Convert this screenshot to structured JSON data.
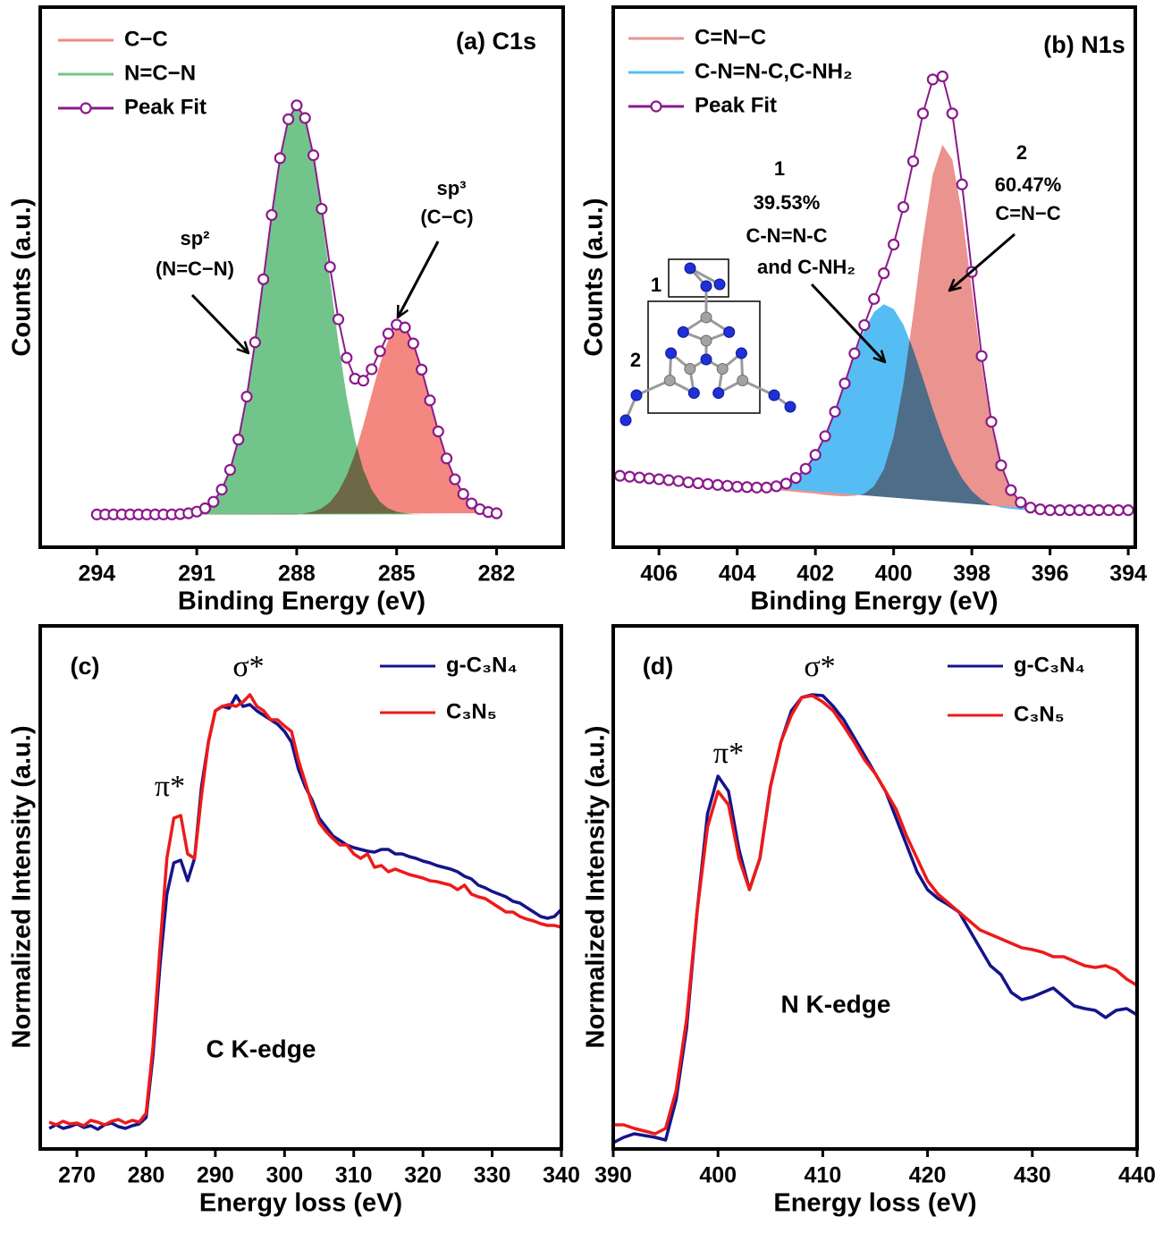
{
  "chart_data": [
    {
      "type": "line",
      "title": "(a) C1s",
      "x_label": "Binding Energy (eV)",
      "y_label": "Counts (a.u.)",
      "xlim": [
        295.7,
        280
      ],
      "xticks": [
        294,
        291,
        288,
        285,
        282
      ],
      "ylim": [
        -0.08,
        1.24
      ],
      "x": [
        294,
        293.75,
        293.5,
        293.25,
        293,
        292.75,
        292.5,
        292.25,
        292,
        291.75,
        291.5,
        291.25,
        291,
        290.75,
        290.5,
        290.25,
        290,
        289.75,
        289.5,
        289.25,
        289,
        288.75,
        288.5,
        288.25,
        288,
        287.75,
        287.5,
        287.25,
        287,
        286.75,
        286.5,
        286.25,
        286,
        285.75,
        285.5,
        285.25,
        285,
        284.75,
        284.5,
        284.25,
        284,
        283.75,
        283.5,
        283.25,
        283,
        282.75,
        282.5,
        282.25,
        282
      ],
      "series": [
        {
          "name": "C−C",
          "color": "#f4877f",
          "fill": true,
          "values": [
            0,
            0,
            0,
            0,
            0,
            0,
            0,
            0,
            0,
            0,
            0,
            0,
            0,
            0,
            0,
            0,
            0,
            0,
            0,
            0,
            0,
            0,
            0,
            0,
            0,
            0.003,
            0.007,
            0.015,
            0.03,
            0.056,
            0.095,
            0.149,
            0.218,
            0.294,
            0.368,
            0.427,
            0.457,
            0.454,
            0.417,
            0.354,
            0.279,
            0.203,
            0.137,
            0.086,
            0.05,
            0.027,
            0.013,
            0.006,
            0.003
          ]
        },
        {
          "name": "N=C−N",
          "color": "#72c58a",
          "fill": true,
          "values": [
            0,
            0,
            0,
            0,
            0,
            0,
            0,
            0,
            0,
            0,
            0.001,
            0.003,
            0.007,
            0.015,
            0.031,
            0.061,
            0.109,
            0.183,
            0.288,
            0.421,
            0.575,
            0.732,
            0.871,
            0.966,
            1,
            0.966,
            0.871,
            0.732,
            0.575,
            0.421,
            0.288,
            0.183,
            0.109,
            0.061,
            0.031,
            0.015,
            0.007,
            0.003,
            0.001,
            0,
            0,
            0,
            0,
            0,
            0,
            0,
            0,
            0,
            0
          ]
        },
        {
          "name": "Peak Fit",
          "color": "#8b1a8b",
          "marker": "circle",
          "values": [
            0,
            0,
            0,
            0,
            0,
            0,
            0,
            0,
            0,
            0,
            0.001,
            0.003,
            0.007,
            0.015,
            0.031,
            0.061,
            0.109,
            0.183,
            0.288,
            0.421,
            0.575,
            0.732,
            0.871,
            0.966,
            1,
            0.969,
            0.878,
            0.747,
            0.605,
            0.477,
            0.383,
            0.332,
            0.327,
            0.355,
            0.399,
            0.442,
            0.464,
            0.457,
            0.418,
            0.354,
            0.279,
            0.203,
            0.137,
            0.086,
            0.05,
            0.027,
            0.013,
            0.006,
            0.003
          ]
        }
      ],
      "annotations": [
        "sp²",
        "(N=C−N)",
        "sp³",
        "(C−C)"
      ]
    },
    {
      "type": "line",
      "title": "(b) N1s",
      "x_label": "Binding Energy (eV)",
      "y_label": "Counts (a.u.)",
      "xlim": [
        407.17,
        393.82
      ],
      "xticks": [
        406,
        404,
        402,
        400,
        398,
        396,
        394
      ],
      "ylim": [
        -0.08,
        1.16
      ],
      "x": [
        407,
        406.75,
        406.5,
        406.25,
        406,
        405.75,
        405.5,
        405.25,
        405,
        404.75,
        404.5,
        404.25,
        404,
        403.75,
        403.5,
        403.25,
        403,
        402.75,
        402.5,
        402.25,
        402,
        401.75,
        401.5,
        401.25,
        401,
        400.75,
        400.5,
        400.25,
        400,
        399.75,
        399.5,
        399.25,
        399,
        398.75,
        398.5,
        398.25,
        398,
        397.75,
        397.5,
        397.25,
        397,
        396.75,
        396.5,
        396.25,
        396,
        395.75,
        395.5,
        395.25,
        395,
        394.75,
        394.5,
        394.25,
        394
      ],
      "series": [
        {
          "name": "C=N−C",
          "color": "#ea938f",
          "fill": true,
          "values": [
            0.084,
            0.082,
            0.08,
            0.078,
            0.076,
            0.074,
            0.072,
            0.069,
            0.067,
            0.065,
            0.063,
            0.061,
            0.059,
            0.057,
            0.055,
            0.053,
            0.051,
            0.049,
            0.047,
            0.045,
            0.043,
            0.04,
            0.038,
            0.037,
            0.038,
            0.043,
            0.06,
            0.099,
            0.174,
            0.294,
            0.454,
            0.629,
            0.775,
            0.844,
            0.81,
            0.686,
            0.512,
            0.337,
            0.196,
            0.102,
            0.048,
            0.022,
            0.011,
            0.007,
            0.005,
            null,
            null,
            null,
            null,
            null,
            null,
            null,
            null
          ]
        },
        {
          "name": "C-N=N-C,C-NH₂",
          "color": "#55bdf4",
          "fill": true,
          "values": [
            0.084,
            0.082,
            0.08,
            0.078,
            0.076,
            0.074,
            0.072,
            0.069,
            0.067,
            0.065,
            0.063,
            0.061,
            0.059,
            0.058,
            0.057,
            0.057,
            0.06,
            0.066,
            0.079,
            0.1,
            0.132,
            0.175,
            0.231,
            0.295,
            0.361,
            0.419,
            0.46,
            0.478,
            0.467,
            0.431,
            0.374,
            0.307,
            0.237,
            0.173,
            0.119,
            0.078,
            0.049,
            0.029,
            0.017,
            0.011,
            0.008,
            0.006,
            0.005,
            0.005,
            0.005,
            null,
            null,
            null,
            null,
            null,
            null,
            null,
            null
          ]
        },
        {
          "name": "Peak Fit",
          "color": "#8b1a8b",
          "marker": "circle",
          "values": [
            0.084,
            0.082,
            0.08,
            0.078,
            0.076,
            0.074,
            0.072,
            0.069,
            0.067,
            0.065,
            0.063,
            0.061,
            0.059,
            0.058,
            0.057,
            0.057,
            0.06,
            0.066,
            0.079,
            0.1,
            0.132,
            0.175,
            0.231,
            0.296,
            0.365,
            0.43,
            0.49,
            0.549,
            0.615,
            0.701,
            0.806,
            0.916,
            0.994,
            1.001,
            0.916,
            0.753,
            0.552,
            0.359,
            0.208,
            0.108,
            0.051,
            0.023,
            0.011,
            0.007,
            0.005,
            0.005,
            0.005,
            0.005,
            0.005,
            0.005,
            0.005,
            0.005,
            0.005
          ]
        }
      ],
      "annotations": [
        "1",
        "39.53%",
        "C-N=N-C",
        "and C-NH₂",
        "2",
        "60.47%",
        "C=N−C"
      ],
      "inset_labels": [
        "1",
        "2"
      ]
    },
    {
      "type": "line",
      "title": "(c)",
      "x_label": "Energy loss (eV)",
      "y_label": "Normalized Intensity (a.u.)",
      "xlim": [
        264.7,
        340
      ],
      "xticks": [
        270,
        280,
        290,
        300,
        310,
        320,
        330,
        340
      ],
      "ylim": [
        0,
        1.17
      ],
      "x": [
        266,
        267,
        268,
        269,
        270,
        271,
        272,
        273,
        274,
        275,
        276,
        277,
        278,
        279,
        280,
        281,
        282,
        283,
        284,
        285,
        286,
        287,
        288,
        289,
        290,
        291,
        292,
        293,
        294,
        295,
        296,
        297,
        298,
        299,
        300,
        301,
        302,
        303,
        304,
        305,
        306,
        307,
        308,
        309,
        310,
        311,
        312,
        313,
        314,
        315,
        316,
        317,
        318,
        319,
        320,
        321,
        322,
        323,
        324,
        325,
        326,
        327,
        328,
        329,
        330,
        331,
        332,
        333,
        334,
        335,
        336,
        337,
        338,
        339,
        340
      ],
      "series": [
        {
          "name": "g-C₃N₄",
          "color": "#14148a",
          "values": [
            0.046,
            0.054,
            0.046,
            0.05,
            0.056,
            0.048,
            0.052,
            0.044,
            0.054,
            0.058,
            0.05,
            0.046,
            0.052,
            0.056,
            0.07,
            0.21,
            0.41,
            0.57,
            0.64,
            0.646,
            0.6,
            0.65,
            0.81,
            0.91,
            0.98,
            0.99,
            0.986,
            1.014,
            0.99,
            0.994,
            0.98,
            0.97,
            0.96,
            0.95,
            0.934,
            0.91,
            0.85,
            0.81,
            0.78,
            0.74,
            0.72,
            0.7,
            0.69,
            0.68,
            0.674,
            0.67,
            0.666,
            0.664,
            0.67,
            0.67,
            0.66,
            0.66,
            0.654,
            0.65,
            0.644,
            0.64,
            0.634,
            0.63,
            0.626,
            0.62,
            0.61,
            0.604,
            0.59,
            0.584,
            0.576,
            0.57,
            0.564,
            0.554,
            0.55,
            0.54,
            0.53,
            0.52,
            0.516,
            0.52,
            0.536
          ]
        },
        {
          "name": "C₃N₅",
          "color": "#ee1a1a",
          "values": [
            0.06,
            0.054,
            0.062,
            0.056,
            0.058,
            0.052,
            0.064,
            0.06,
            0.054,
            0.062,
            0.066,
            0.058,
            0.064,
            0.06,
            0.08,
            0.23,
            0.45,
            0.65,
            0.74,
            0.746,
            0.66,
            0.65,
            0.79,
            0.91,
            0.98,
            0.99,
            0.994,
            0.99,
            1.0,
            1.016,
            0.99,
            0.98,
            0.96,
            0.96,
            0.946,
            0.934,
            0.87,
            0.82,
            0.77,
            0.73,
            0.71,
            0.694,
            0.68,
            0.68,
            0.66,
            0.65,
            0.66,
            0.63,
            0.634,
            0.62,
            0.626,
            0.62,
            0.614,
            0.61,
            0.606,
            0.6,
            0.598,
            0.594,
            0.59,
            0.58,
            0.59,
            0.57,
            0.564,
            0.56,
            0.55,
            0.54,
            0.53,
            0.53,
            0.52,
            0.514,
            0.51,
            0.504,
            0.5,
            0.5,
            0.496
          ]
        }
      ],
      "annotations": [
        "σ*",
        "π*",
        "C K-edge"
      ]
    },
    {
      "type": "line",
      "title": "(d)",
      "x_label": "Energy loss (eV)",
      "y_label": "Normalized Intensity (a.u.)",
      "xlim": [
        390,
        440
      ],
      "xticks": [
        390,
        400,
        410,
        420,
        430,
        440
      ],
      "ylim": [
        0,
        1.17
      ],
      "x": [
        390,
        391,
        392,
        393,
        394,
        395,
        396,
        397,
        398,
        399,
        400,
        401,
        402,
        403,
        404,
        405,
        406,
        407,
        408,
        409,
        410,
        411,
        412,
        413,
        414,
        415,
        416,
        417,
        418,
        419,
        420,
        421,
        422,
        423,
        424,
        425,
        426,
        427,
        428,
        429,
        430,
        431,
        432,
        433,
        434,
        435,
        436,
        437,
        438,
        439,
        440
      ],
      "series": [
        {
          "name": "g-C₃N₄",
          "color": "#14148a",
          "values": [
            0.014,
            0.026,
            0.034,
            0.03,
            0.026,
            0.02,
            0.11,
            0.27,
            0.53,
            0.75,
            0.834,
            0.8,
            0.67,
            0.58,
            0.65,
            0.81,
            0.91,
            0.98,
            1.01,
            1.016,
            1.014,
            0.99,
            0.96,
            0.92,
            0.88,
            0.84,
            0.8,
            0.74,
            0.68,
            0.62,
            0.58,
            0.56,
            0.546,
            0.53,
            0.49,
            0.45,
            0.41,
            0.39,
            0.35,
            0.334,
            0.34,
            0.35,
            0.36,
            0.34,
            0.32,
            0.314,
            0.31,
            0.294,
            0.31,
            0.314,
            0.3
          ]
        },
        {
          "name": "C₃N₅",
          "color": "#ee1a1a",
          "values": [
            0.054,
            0.054,
            0.046,
            0.04,
            0.034,
            0.046,
            0.13,
            0.29,
            0.53,
            0.72,
            0.8,
            0.77,
            0.65,
            0.58,
            0.65,
            0.81,
            0.91,
            0.97,
            1.01,
            1.014,
            1.0,
            0.98,
            0.946,
            0.91,
            0.87,
            0.84,
            0.8,
            0.76,
            0.7,
            0.65,
            0.6,
            0.57,
            0.55,
            0.53,
            0.51,
            0.49,
            0.48,
            0.47,
            0.46,
            0.45,
            0.446,
            0.44,
            0.43,
            0.43,
            0.42,
            0.41,
            0.406,
            0.41,
            0.4,
            0.38,
            0.366
          ]
        }
      ],
      "annotations": [
        "σ*",
        "π*",
        "N K-edge"
      ]
    }
  ]
}
